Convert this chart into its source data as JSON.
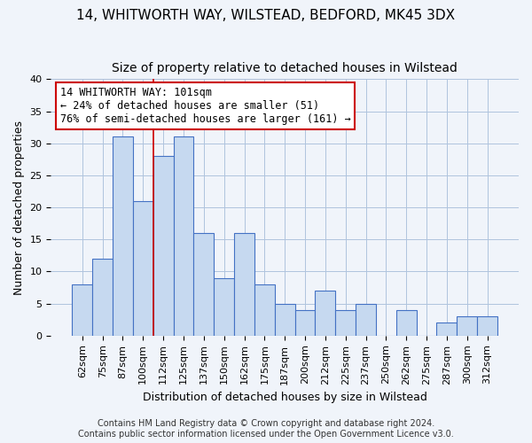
{
  "title1": "14, WHITWORTH WAY, WILSTEAD, BEDFORD, MK45 3DX",
  "title2": "Size of property relative to detached houses in Wilstead",
  "xlabel": "Distribution of detached houses by size in Wilstead",
  "ylabel": "Number of detached properties",
  "categories": [
    "62sqm",
    "75sqm",
    "87sqm",
    "100sqm",
    "112sqm",
    "125sqm",
    "137sqm",
    "150sqm",
    "162sqm",
    "175sqm",
    "187sqm",
    "200sqm",
    "212sqm",
    "225sqm",
    "237sqm",
    "250sqm",
    "262sqm",
    "275sqm",
    "287sqm",
    "300sqm",
    "312sqm"
  ],
  "values": [
    8,
    12,
    31,
    21,
    28,
    31,
    16,
    9,
    16,
    8,
    5,
    4,
    7,
    4,
    5,
    0,
    4,
    0,
    2,
    3,
    3
  ],
  "bar_color": "#c6d9f0",
  "bar_edge_color": "#4472c4",
  "grid_color": "#b0c4de",
  "annotation_box_color": "#ffffff",
  "annotation_box_edge": "#cc0000",
  "annotation_text": "14 WHITWORTH WAY: 101sqm\n← 24% of detached houses are smaller (51)\n76% of semi-detached houses are larger (161) →",
  "vline_x_index": 3.5,
  "vline_color": "#cc0000",
  "ylim": [
    0,
    40
  ],
  "yticks": [
    0,
    5,
    10,
    15,
    20,
    25,
    30,
    35,
    40
  ],
  "footer1": "Contains HM Land Registry data © Crown copyright and database right 2024.",
  "footer2": "Contains public sector information licensed under the Open Government Licence v3.0.",
  "bg_color": "#f0f4fa",
  "title_fontsize": 11,
  "subtitle_fontsize": 10,
  "axis_fontsize": 9,
  "tick_fontsize": 8,
  "annotation_fontsize": 8.5,
  "footer_fontsize": 7
}
